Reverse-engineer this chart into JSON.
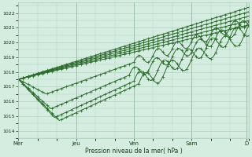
{
  "bg_color": "#d4ede0",
  "grid_color": "#aacbba",
  "line_color": "#2d6b2d",
  "marker_color": "#2d6b2d",
  "xlabel": "Pression niveau de la mer( hPa )",
  "ylim": [
    1013.5,
    1022.7
  ],
  "yticks": [
    1014,
    1015,
    1016,
    1017,
    1018,
    1019,
    1020,
    1021,
    1022
  ],
  "xlabels": [
    "Mer",
    "Jeu",
    "Ven",
    "Sam",
    "D"
  ],
  "xtick_positions": [
    0,
    48,
    96,
    144,
    190
  ],
  "xlim": [
    0,
    192
  ]
}
